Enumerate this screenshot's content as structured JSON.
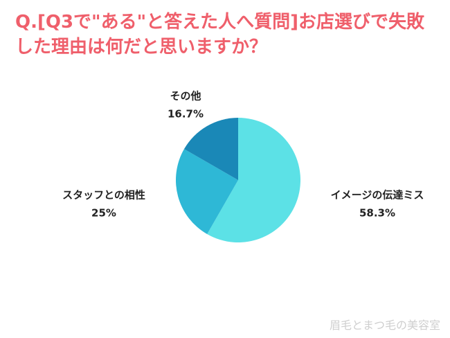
{
  "chart_data": {
    "type": "pie",
    "title": "Q.[Q3で\"ある\"と答えた人へ質問]お店選びで失敗した理由は何だと思いますか？",
    "categories": [
      "イメージの伝達ミス",
      "スタッフとの相性",
      "その他"
    ],
    "values": [
      58.3,
      25,
      16.7
    ],
    "value_labels": [
      "58.3%",
      "25%",
      "16.7%"
    ],
    "colors": [
      "#5ce1e6",
      "#2eb8d6",
      "#1a88b7"
    ],
    "watermark": "眉毛とまつ毛の美容室"
  }
}
